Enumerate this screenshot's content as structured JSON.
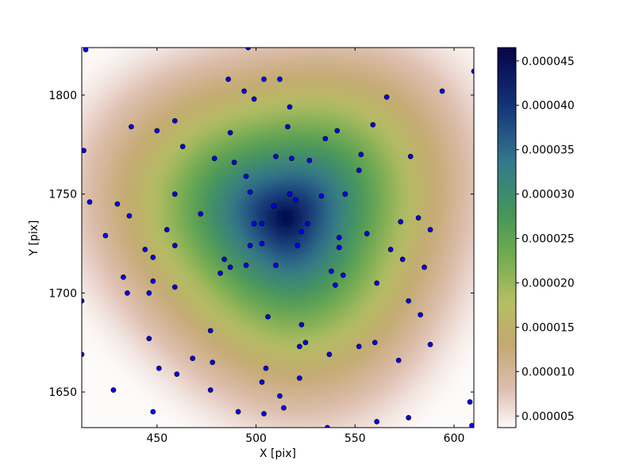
{
  "chart_data": {
    "type": "heatmap",
    "title": "",
    "xlabel": "X [pix]",
    "ylabel": "Y [pix]",
    "xlim": [
      412,
      610
    ],
    "ylim": [
      1632,
      1824
    ],
    "x_ticks": [
      450,
      500,
      550,
      600
    ],
    "y_ticks": [
      1650,
      1700,
      1750,
      1800
    ],
    "grid": false,
    "colormap": "gist_earth_r",
    "colorbar": {
      "range": [
        3.7e-06,
        4.65e-05
      ],
      "ticks": [
        "0.000005",
        "0.000010",
        "0.000015",
        "0.000020",
        "0.000025",
        "0.000030",
        "0.000035",
        "0.000040",
        "0.000045"
      ],
      "tick_values": [
        5e-06,
        1e-05,
        1.5e-05,
        2e-05,
        2.5e-05,
        3e-05,
        3.5e-05,
        4e-05,
        4.5e-05
      ]
    },
    "peak": {
      "x": 515,
      "y": 1738
    },
    "point_color": "#0000ff",
    "points": [
      [
        414,
        1823
      ],
      [
        496,
        1824
      ],
      [
        413,
        1772
      ],
      [
        416,
        1746
      ],
      [
        412,
        1696
      ],
      [
        412,
        1669
      ],
      [
        486,
        1808
      ],
      [
        504,
        1808
      ],
      [
        512,
        1808
      ],
      [
        494,
        1802
      ],
      [
        499,
        1798
      ],
      [
        517,
        1794
      ],
      [
        566,
        1799
      ],
      [
        594,
        1802
      ],
      [
        610,
        1812
      ],
      [
        437,
        1784
      ],
      [
        450,
        1782
      ],
      [
        459,
        1787
      ],
      [
        487,
        1781
      ],
      [
        516,
        1784
      ],
      [
        535,
        1778
      ],
      [
        541,
        1782
      ],
      [
        559,
        1785
      ],
      [
        463,
        1774
      ],
      [
        479,
        1768
      ],
      [
        489,
        1766
      ],
      [
        510,
        1769
      ],
      [
        518,
        1768
      ],
      [
        527,
        1767
      ],
      [
        553,
        1770
      ],
      [
        578,
        1769
      ],
      [
        552,
        1762
      ],
      [
        430,
        1745
      ],
      [
        436,
        1739
      ],
      [
        459,
        1750
      ],
      [
        472,
        1740
      ],
      [
        495,
        1759
      ],
      [
        497,
        1751
      ],
      [
        517,
        1750
      ],
      [
        520,
        1747
      ],
      [
        533,
        1749
      ],
      [
        545,
        1750
      ],
      [
        424,
        1729
      ],
      [
        455,
        1732
      ],
      [
        499,
        1735
      ],
      [
        503,
        1735
      ],
      [
        509,
        1744
      ],
      [
        521,
        1724
      ],
      [
        523,
        1731
      ],
      [
        526,
        1735
      ],
      [
        542,
        1728
      ],
      [
        556,
        1730
      ],
      [
        573,
        1736
      ],
      [
        582,
        1738
      ],
      [
        588,
        1732
      ],
      [
        444,
        1722
      ],
      [
        448,
        1718
      ],
      [
        459,
        1724
      ],
      [
        484,
        1717
      ],
      [
        497,
        1724
      ],
      [
        503,
        1725
      ],
      [
        495,
        1714
      ],
      [
        487,
        1713
      ],
      [
        482,
        1710
      ],
      [
        510,
        1714
      ],
      [
        542,
        1723
      ],
      [
        538,
        1711
      ],
      [
        544,
        1709
      ],
      [
        568,
        1722
      ],
      [
        574,
        1717
      ],
      [
        585,
        1713
      ],
      [
        433,
        1708
      ],
      [
        435,
        1700
      ],
      [
        446,
        1700
      ],
      [
        448,
        1706
      ],
      [
        459,
        1703
      ],
      [
        540,
        1704
      ],
      [
        561,
        1705
      ],
      [
        577,
        1696
      ],
      [
        583,
        1689
      ],
      [
        506,
        1688
      ],
      [
        523,
        1684
      ],
      [
        477,
        1681
      ],
      [
        446,
        1677
      ],
      [
        468,
        1667
      ],
      [
        478,
        1665
      ],
      [
        525,
        1675
      ],
      [
        522,
        1673
      ],
      [
        537,
        1669
      ],
      [
        552,
        1673
      ],
      [
        560,
        1675
      ],
      [
        572,
        1666
      ],
      [
        588,
        1674
      ],
      [
        451,
        1662
      ],
      [
        460,
        1659
      ],
      [
        505,
        1662
      ],
      [
        503,
        1655
      ],
      [
        522,
        1657
      ],
      [
        428,
        1651
      ],
      [
        477,
        1651
      ],
      [
        512,
        1648
      ],
      [
        514,
        1642
      ],
      [
        491,
        1640
      ],
      [
        504,
        1639
      ],
      [
        448,
        1640
      ],
      [
        536,
        1632
      ],
      [
        561,
        1635
      ],
      [
        577,
        1637
      ],
      [
        608,
        1645
      ],
      [
        609,
        1633
      ]
    ]
  }
}
